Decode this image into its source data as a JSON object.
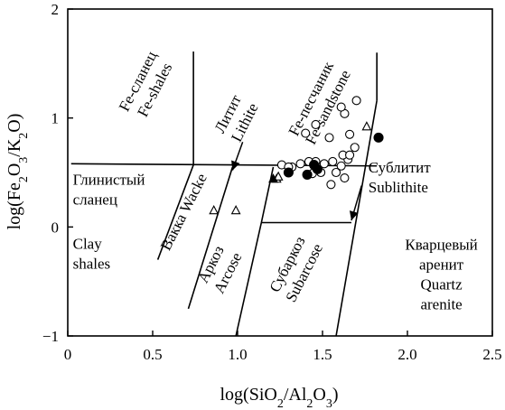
{
  "chart_data": {
    "type": "scatter",
    "title": "",
    "xlabel": {
      "pre": "log(SiO",
      "s1": "2",
      "mid": "/Al",
      "s2": "2",
      "mid2": "O",
      "s3": "3",
      "post": ")"
    },
    "ylabel": {
      "pre": "log(Fe",
      "s1": "2",
      "mid": "O",
      "s2": "3",
      "mid2": "/K",
      "s3": "2",
      "post": "O)"
    },
    "xlim": [
      0,
      2.5
    ],
    "ylim": [
      -1,
      2
    ],
    "xticks": [
      0,
      0.5,
      1.0,
      1.5,
      2.0,
      2.5
    ],
    "xtick_labels": [
      "0",
      "0.5",
      "1.0",
      "1.5",
      "2.0",
      "2.5"
    ],
    "yticks": [
      -1,
      0,
      1,
      2
    ],
    "ytick_labels": [
      "−1",
      "0",
      "1",
      "2"
    ],
    "grid": false,
    "boundaries": [
      [
        [
          0.74,
          1.61
        ],
        [
          0.74,
          0.57
        ]
      ],
      [
        [
          0.02,
          0.58
        ],
        [
          1.82,
          0.56
        ]
      ],
      [
        [
          1.14,
          0.04
        ],
        [
          1.67,
          0.04
        ]
      ],
      [
        [
          0.53,
          -0.3
        ],
        [
          0.74,
          0.57
        ]
      ],
      [
        [
          0.71,
          -0.75
        ],
        [
          0.97,
          0.55
        ]
      ],
      [
        [
          0.99,
          -1.0
        ],
        [
          1.14,
          0.04
        ]
      ],
      [
        [
          1.14,
          0.04
        ],
        [
          1.21,
          0.55
        ]
      ],
      [
        [
          1.58,
          -1.0
        ],
        [
          1.82,
          1.16
        ]
      ],
      [
        [
          1.82,
          1.16
        ],
        [
          1.82,
          1.6
        ]
      ]
    ],
    "arrows": [
      [
        [
          1.03,
          0.78
        ],
        [
          0.97,
          0.52
        ]
      ],
      [
        [
          1.73,
          0.38
        ],
        [
          1.67,
          0.06
        ]
      ]
    ],
    "field_labels": [
      {
        "lines": [
          "Fe-сланец",
          "Fe-shales"
        ],
        "x": 0.46,
        "y": 1.3,
        "rotate": -63
      },
      {
        "lines": [
          "Литит",
          "Lithite"
        ],
        "x": 0.99,
        "y": 1.0,
        "rotate": -63
      },
      {
        "lines": [
          "Fe-песчаник",
          "Fe-sandstone"
        ],
        "x": 1.48,
        "y": 1.14,
        "rotate": -63
      },
      {
        "lines": [
          "Глинистый",
          "сланец"
        ],
        "x": 0.03,
        "y": 0.39,
        "rotate": 0
      },
      {
        "lines": [
          "Clay",
          "shales"
        ],
        "x": 0.03,
        "y": -0.2,
        "rotate": 0
      },
      {
        "lines": [
          "Вакка Wacke"
        ],
        "x": 0.68,
        "y": 0.14,
        "rotate": -63
      },
      {
        "lines": [
          "Аркоз",
          "Arcose"
        ],
        "x": 0.89,
        "y": -0.38,
        "rotate": -63
      },
      {
        "lines": [
          "Субаркоз",
          "Subarcose"
        ],
        "x": 1.34,
        "y": -0.38,
        "rotate": -63
      },
      {
        "lines": [
          "Сублитит",
          "Sublithite"
        ],
        "x": 1.77,
        "y": 0.5,
        "rotate": 0
      },
      {
        "lines": [
          "Кварцевый",
          "аренит",
          "Quartz",
          "arenite"
        ],
        "x": 2.2,
        "y": -0.21,
        "rotate": 0
      }
    ],
    "series": [
      {
        "marker": "open-circle",
        "points": [
          [
            1.26,
            0.57
          ],
          [
            1.32,
            0.55
          ],
          [
            1.37,
            0.58
          ],
          [
            1.42,
            0.6
          ],
          [
            1.46,
            0.6
          ],
          [
            1.51,
            0.58
          ],
          [
            1.56,
            0.6
          ],
          [
            1.61,
            0.56
          ],
          [
            1.65,
            0.62
          ],
          [
            1.62,
            0.66
          ],
          [
            1.66,
            0.85
          ],
          [
            1.69,
            0.73
          ],
          [
            1.63,
            1.04
          ],
          [
            1.7,
            1.16
          ],
          [
            1.61,
            1.1
          ],
          [
            1.46,
            0.94
          ],
          [
            1.4,
            0.86
          ],
          [
            1.54,
            0.82
          ],
          [
            1.3,
            0.55
          ],
          [
            1.44,
            0.49
          ],
          [
            1.49,
            0.5
          ],
          [
            1.58,
            0.5
          ],
          [
            1.63,
            0.45
          ],
          [
            1.55,
            0.39
          ],
          [
            1.66,
            0.66
          ]
        ]
      },
      {
        "marker": "filled-circle",
        "points": [
          [
            1.3,
            0.5
          ],
          [
            1.41,
            0.48
          ],
          [
            1.45,
            0.57
          ],
          [
            1.47,
            0.53
          ],
          [
            1.83,
            0.82
          ]
        ]
      },
      {
        "marker": "open-triangle",
        "points": [
          [
            0.86,
            0.15
          ],
          [
            0.99,
            0.15
          ],
          [
            1.23,
            0.44
          ],
          [
            1.24,
            0.46
          ],
          [
            1.76,
            0.92
          ]
        ]
      },
      {
        "marker": "filled-triangle",
        "points": [
          [
            1.21,
            0.44
          ]
        ]
      }
    ]
  }
}
